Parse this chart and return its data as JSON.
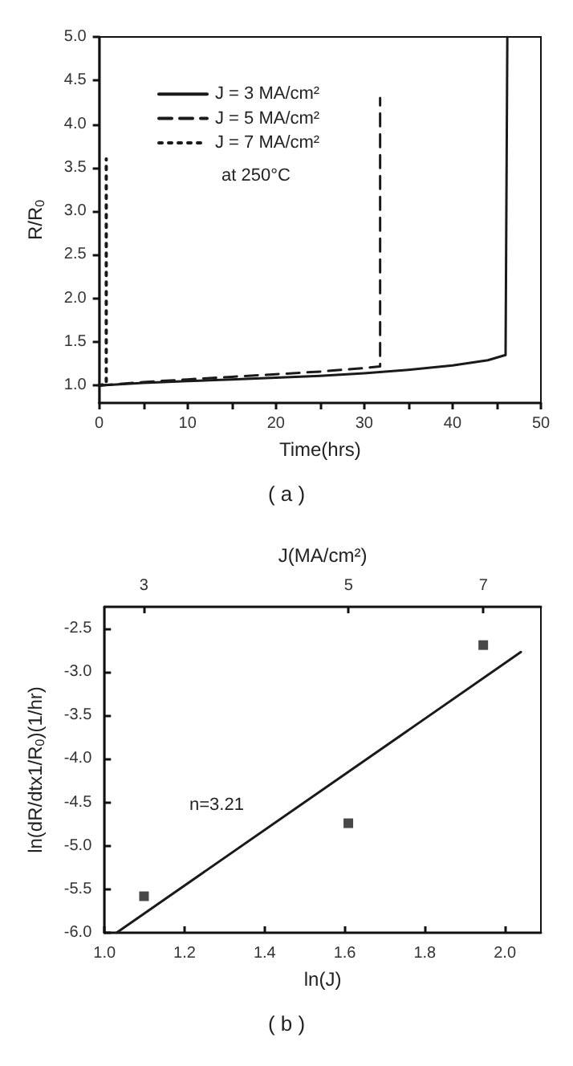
{
  "chart_data": [
    {
      "type": "line",
      "title": "( a )",
      "xlabel": "Time(hrs)",
      "ylabel": "R/R$_{0}$",
      "xlim": [
        0,
        50
      ],
      "ylim": [
        0.8,
        5.0
      ],
      "xticks": [
        0,
        {
          "value": 5,
          "label": null
        },
        10,
        {
          "value": 15,
          "label": null
        },
        20,
        {
          "value": 25,
          "label": null
        },
        30,
        {
          "value": 35,
          "label": null
        },
        40,
        {
          "value": 45,
          "label": null
        },
        50
      ],
      "yticks": [
        {
          "value": 1.0,
          "label": "1.0"
        },
        {
          "value": 1.5,
          "label": "1.5"
        },
        {
          "value": 2.0,
          "label": "2.0"
        },
        {
          "value": 2.5,
          "label": "2.5"
        },
        {
          "value": 3.0,
          "label": "3.0"
        },
        {
          "value": 3.5,
          "label": "3.5"
        },
        {
          "value": 4.0,
          "label": "4.0"
        },
        {
          "value": 4.5,
          "label": "4.5"
        },
        {
          "value": 5.0,
          "label": "5.0"
        }
      ],
      "series": [
        {
          "name": "J = 3 MA/cm²",
          "color": "#1a1a1a",
          "line_style": "solid",
          "x": [
            0,
            5,
            10,
            15,
            20,
            25,
            30,
            35,
            40,
            44,
            46,
            46.2
          ],
          "values": [
            1.0,
            1.03,
            1.05,
            1.07,
            1.09,
            1.11,
            1.14,
            1.18,
            1.23,
            1.29,
            1.35,
            5.0
          ]
        },
        {
          "name": "J = 5 MA/cm²",
          "color": "#1a1a1a",
          "line_style": "dashed",
          "x": [
            0,
            5,
            10,
            15,
            20,
            25,
            30,
            31.8,
            31.8
          ],
          "values": [
            1.0,
            1.04,
            1.07,
            1.1,
            1.13,
            1.16,
            1.2,
            1.22,
            4.3
          ]
        },
        {
          "name": "J = 7 MA/cm²",
          "color": "#1a1a1a",
          "line_style": "dotted",
          "x": [
            0,
            0.8,
            0.8
          ],
          "values": [
            1.0,
            1.02,
            3.6
          ]
        }
      ],
      "legend": "top",
      "marker": "none",
      "grid": false,
      "annotations": [
        "at 250°C"
      ]
    },
    {
      "type": "scatter",
      "title": "( b )",
      "xlabel": "ln(J)",
      "ylabel": "ln(dR/dtx1/R$_{0}$)(1/hr)",
      "x2label": "J(MA/cm²)",
      "log": "x2",
      "xlim": [
        1.0,
        2.09
      ],
      "ylim": [
        -6.0,
        -2.25
      ],
      "x2lim": [
        2.72,
        8.08
      ],
      "xticks": [
        {
          "value": 1.0,
          "label": "1.0"
        },
        {
          "value": 1.2,
          "label": "1.2"
        },
        {
          "value": 1.4,
          "label": "1.4"
        },
        {
          "value": 1.6,
          "label": "1.6"
        },
        {
          "value": 1.8,
          "label": "1.8"
        },
        {
          "value": 2.0,
          "label": "2.0"
        }
      ],
      "x2ticks": [
        3,
        5,
        7
      ],
      "yticks": [
        {
          "value": -6.0,
          "label": "-6.0"
        },
        {
          "value": -5.5,
          "label": "-5.5"
        },
        {
          "value": -5.0,
          "label": "-5.0"
        },
        {
          "value": -4.5,
          "label": "-4.5"
        },
        {
          "value": -4.0,
          "label": "-4.0"
        },
        {
          "value": -3.5,
          "label": "-3.5"
        },
        {
          "value": -3.0,
          "label": "-3.0"
        },
        {
          "value": -2.5,
          "label": "-2.5"
        }
      ],
      "series": [
        {
          "color": "#1a1a1a",
          "marker": "square",
          "x": [
            1.0986,
            1.609,
            1.946
          ],
          "values": [
            -5.58,
            -4.74,
            -2.69
          ]
        },
        {
          "type": "line",
          "color": "#1a1a1a",
          "marker": "none",
          "line_style": "solid",
          "x": [
            1.03,
            2.04
          ],
          "values": [
            -6.0,
            -2.77
          ]
        }
      ],
      "grid": false,
      "annotations": [
        "n=3.21"
      ]
    }
  ]
}
